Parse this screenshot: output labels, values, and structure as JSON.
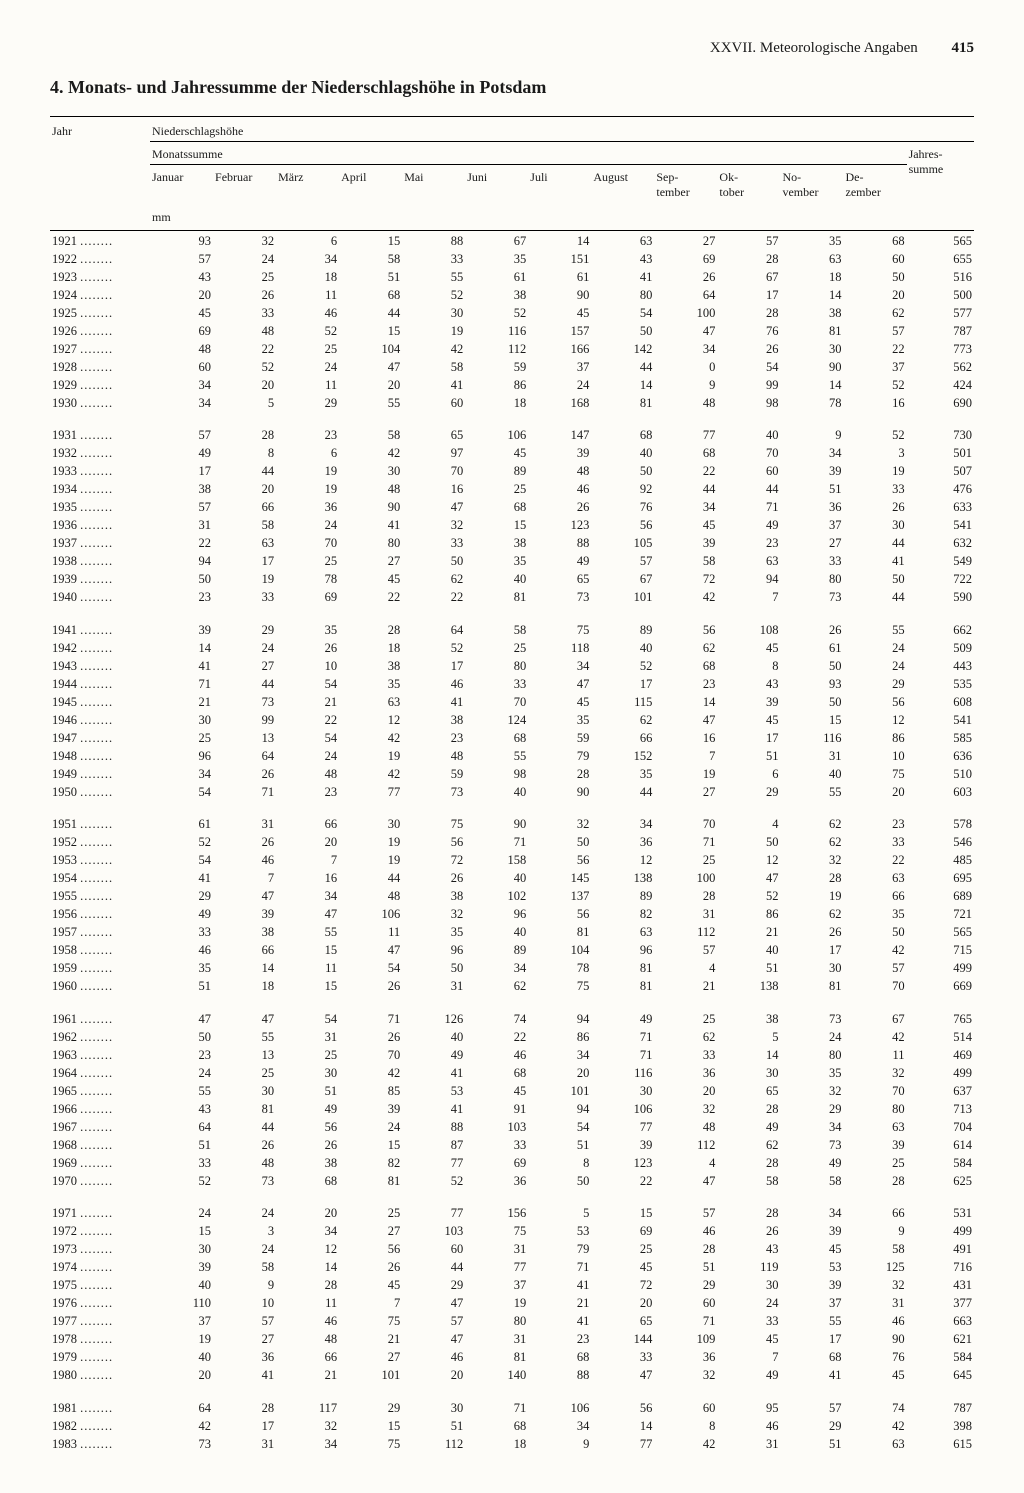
{
  "header": {
    "section": "XXVII. Meteorologische Angaben",
    "page": "415"
  },
  "title": "4. Monats- und Jahressumme der Niederschlagshöhe in Potsdam",
  "columns": {
    "year": "Jahr",
    "group": "Niederschlagshöhe",
    "monthGroup": "Monatssumme",
    "annual": "Jahres-\nsumme",
    "months": [
      "Januar",
      "Februar",
      "März",
      "April",
      "Mai",
      "Juni",
      "Juli",
      "August",
      "Sep-\ntember",
      "Ok-\ntober",
      "No-\nvember",
      "De-\nzember"
    ],
    "unit": "mm"
  },
  "rows": [
    {
      "y": "1921",
      "v": [
        93,
        32,
        6,
        15,
        88,
        67,
        14,
        63,
        27,
        57,
        35,
        68,
        565
      ]
    },
    {
      "y": "1922",
      "v": [
        57,
        24,
        34,
        58,
        33,
        35,
        151,
        43,
        69,
        28,
        63,
        60,
        655
      ]
    },
    {
      "y": "1923",
      "v": [
        43,
        25,
        18,
        51,
        55,
        61,
        61,
        41,
        26,
        67,
        18,
        50,
        516
      ]
    },
    {
      "y": "1924",
      "v": [
        20,
        26,
        11,
        68,
        52,
        38,
        90,
        80,
        64,
        17,
        14,
        20,
        500
      ]
    },
    {
      "y": "1925",
      "v": [
        45,
        33,
        46,
        44,
        30,
        52,
        45,
        54,
        100,
        28,
        38,
        62,
        577
      ]
    },
    {
      "y": "1926",
      "v": [
        69,
        48,
        52,
        15,
        19,
        116,
        157,
        50,
        47,
        76,
        81,
        57,
        787
      ]
    },
    {
      "y": "1927",
      "v": [
        48,
        22,
        25,
        104,
        42,
        112,
        166,
        142,
        34,
        26,
        30,
        22,
        773
      ]
    },
    {
      "y": "1928",
      "v": [
        60,
        52,
        24,
        47,
        58,
        59,
        37,
        44,
        0,
        54,
        90,
        37,
        562
      ]
    },
    {
      "y": "1929",
      "v": [
        34,
        20,
        11,
        20,
        41,
        86,
        24,
        14,
        9,
        99,
        14,
        52,
        424
      ]
    },
    {
      "y": "1930",
      "v": [
        34,
        5,
        29,
        55,
        60,
        18,
        168,
        81,
        48,
        98,
        78,
        16,
        690
      ]
    },
    {
      "y": "1931",
      "v": [
        57,
        28,
        23,
        58,
        65,
        106,
        147,
        68,
        77,
        40,
        9,
        52,
        730
      ],
      "gap": true
    },
    {
      "y": "1932",
      "v": [
        49,
        8,
        6,
        42,
        97,
        45,
        39,
        40,
        68,
        70,
        34,
        3,
        501
      ]
    },
    {
      "y": "1933",
      "v": [
        17,
        44,
        19,
        30,
        70,
        89,
        48,
        50,
        22,
        60,
        39,
        19,
        507
      ]
    },
    {
      "y": "1934",
      "v": [
        38,
        20,
        19,
        48,
        16,
        25,
        46,
        92,
        44,
        44,
        51,
        33,
        476
      ]
    },
    {
      "y": "1935",
      "v": [
        57,
        66,
        36,
        90,
        47,
        68,
        26,
        76,
        34,
        71,
        36,
        26,
        633
      ]
    },
    {
      "y": "1936",
      "v": [
        31,
        58,
        24,
        41,
        32,
        15,
        123,
        56,
        45,
        49,
        37,
        30,
        541
      ]
    },
    {
      "y": "1937",
      "v": [
        22,
        63,
        70,
        80,
        33,
        38,
        88,
        105,
        39,
        23,
        27,
        44,
        632
      ]
    },
    {
      "y": "1938",
      "v": [
        94,
        17,
        25,
        27,
        50,
        35,
        49,
        57,
        58,
        63,
        33,
        41,
        549
      ]
    },
    {
      "y": "1939",
      "v": [
        50,
        19,
        78,
        45,
        62,
        40,
        65,
        67,
        72,
        94,
        80,
        50,
        722
      ]
    },
    {
      "y": "1940",
      "v": [
        23,
        33,
        69,
        22,
        22,
        81,
        73,
        101,
        42,
        7,
        73,
        44,
        590
      ]
    },
    {
      "y": "1941",
      "v": [
        39,
        29,
        35,
        28,
        64,
        58,
        75,
        89,
        56,
        108,
        26,
        55,
        662
      ],
      "gap": true
    },
    {
      "y": "1942",
      "v": [
        14,
        24,
        26,
        18,
        52,
        25,
        118,
        40,
        62,
        45,
        61,
        24,
        509
      ]
    },
    {
      "y": "1943",
      "v": [
        41,
        27,
        10,
        38,
        17,
        80,
        34,
        52,
        68,
        8,
        50,
        24,
        443
      ]
    },
    {
      "y": "1944",
      "v": [
        71,
        44,
        54,
        35,
        46,
        33,
        47,
        17,
        23,
        43,
        93,
        29,
        535
      ]
    },
    {
      "y": "1945",
      "v": [
        21,
        73,
        21,
        63,
        41,
        70,
        45,
        115,
        14,
        39,
        50,
        56,
        608
      ]
    },
    {
      "y": "1946",
      "v": [
        30,
        99,
        22,
        12,
        38,
        124,
        35,
        62,
        47,
        45,
        15,
        12,
        541
      ]
    },
    {
      "y": "1947",
      "v": [
        25,
        13,
        54,
        42,
        23,
        68,
        59,
        66,
        16,
        17,
        116,
        86,
        585
      ]
    },
    {
      "y": "1948",
      "v": [
        96,
        64,
        24,
        19,
        48,
        55,
        79,
        152,
        7,
        51,
        31,
        10,
        636
      ]
    },
    {
      "y": "1949",
      "v": [
        34,
        26,
        48,
        42,
        59,
        98,
        28,
        35,
        19,
        6,
        40,
        75,
        510
      ]
    },
    {
      "y": "1950",
      "v": [
        54,
        71,
        23,
        77,
        73,
        40,
        90,
        44,
        27,
        29,
        55,
        20,
        603
      ]
    },
    {
      "y": "1951",
      "v": [
        61,
        31,
        66,
        30,
        75,
        90,
        32,
        34,
        70,
        4,
        62,
        23,
        578
      ],
      "gap": true
    },
    {
      "y": "1952",
      "v": [
        52,
        26,
        20,
        19,
        56,
        71,
        50,
        36,
        71,
        50,
        62,
        33,
        546
      ]
    },
    {
      "y": "1953",
      "v": [
        54,
        46,
        7,
        19,
        72,
        158,
        56,
        12,
        25,
        12,
        32,
        22,
        485
      ]
    },
    {
      "y": "1954",
      "v": [
        41,
        7,
        16,
        44,
        26,
        40,
        145,
        138,
        100,
        47,
        28,
        63,
        695
      ]
    },
    {
      "y": "1955",
      "v": [
        29,
        47,
        34,
        48,
        38,
        102,
        137,
        89,
        28,
        52,
        19,
        66,
        689
      ]
    },
    {
      "y": "1956",
      "v": [
        49,
        39,
        47,
        106,
        32,
        96,
        56,
        82,
        31,
        86,
        62,
        35,
        721
      ]
    },
    {
      "y": "1957",
      "v": [
        33,
        38,
        55,
        11,
        35,
        40,
        81,
        63,
        112,
        21,
        26,
        50,
        565
      ]
    },
    {
      "y": "1958",
      "v": [
        46,
        66,
        15,
        47,
        96,
        89,
        104,
        96,
        57,
        40,
        17,
        42,
        715
      ]
    },
    {
      "y": "1959",
      "v": [
        35,
        14,
        11,
        54,
        50,
        34,
        78,
        81,
        4,
        51,
        30,
        57,
        499
      ]
    },
    {
      "y": "1960",
      "v": [
        51,
        18,
        15,
        26,
        31,
        62,
        75,
        81,
        21,
        138,
        81,
        70,
        669
      ]
    },
    {
      "y": "1961",
      "v": [
        47,
        47,
        54,
        71,
        126,
        74,
        94,
        49,
        25,
        38,
        73,
        67,
        765
      ],
      "gap": true
    },
    {
      "y": "1962",
      "v": [
        50,
        55,
        31,
        26,
        40,
        22,
        86,
        71,
        62,
        5,
        24,
        42,
        514
      ]
    },
    {
      "y": "1963",
      "v": [
        23,
        13,
        25,
        70,
        49,
        46,
        34,
        71,
        33,
        14,
        80,
        11,
        469
      ]
    },
    {
      "y": "1964",
      "v": [
        24,
        25,
        30,
        42,
        41,
        68,
        20,
        116,
        36,
        30,
        35,
        32,
        499
      ]
    },
    {
      "y": "1965",
      "v": [
        55,
        30,
        51,
        85,
        53,
        45,
        101,
        30,
        20,
        65,
        32,
        70,
        637
      ]
    },
    {
      "y": "1966",
      "v": [
        43,
        81,
        49,
        39,
        41,
        91,
        94,
        106,
        32,
        28,
        29,
        80,
        713
      ]
    },
    {
      "y": "1967",
      "v": [
        64,
        44,
        56,
        24,
        88,
        103,
        54,
        77,
        48,
        49,
        34,
        63,
        704
      ]
    },
    {
      "y": "1968",
      "v": [
        51,
        26,
        26,
        15,
        87,
        33,
        51,
        39,
        112,
        62,
        73,
        39,
        614
      ]
    },
    {
      "y": "1969",
      "v": [
        33,
        48,
        38,
        82,
        77,
        69,
        8,
        123,
        4,
        28,
        49,
        25,
        584
      ]
    },
    {
      "y": "1970",
      "v": [
        52,
        73,
        68,
        81,
        52,
        36,
        50,
        22,
        47,
        58,
        58,
        28,
        625
      ]
    },
    {
      "y": "1971",
      "v": [
        24,
        24,
        20,
        25,
        77,
        156,
        5,
        15,
        57,
        28,
        34,
        66,
        531
      ],
      "gap": true
    },
    {
      "y": "1972",
      "v": [
        15,
        3,
        34,
        27,
        103,
        75,
        53,
        69,
        46,
        26,
        39,
        9,
        499
      ]
    },
    {
      "y": "1973",
      "v": [
        30,
        24,
        12,
        56,
        60,
        31,
        79,
        25,
        28,
        43,
        45,
        58,
        491
      ]
    },
    {
      "y": "1974",
      "v": [
        39,
        58,
        14,
        26,
        44,
        77,
        71,
        45,
        51,
        119,
        53,
        125,
        716
      ]
    },
    {
      "y": "1975",
      "v": [
        40,
        9,
        28,
        45,
        29,
        37,
        41,
        72,
        29,
        30,
        39,
        32,
        431
      ]
    },
    {
      "y": "1976",
      "v": [
        110,
        10,
        11,
        7,
        47,
        19,
        21,
        20,
        60,
        24,
        37,
        31,
        377
      ]
    },
    {
      "y": "1977",
      "v": [
        37,
        57,
        46,
        75,
        57,
        80,
        41,
        65,
        71,
        33,
        55,
        46,
        663
      ]
    },
    {
      "y": "1978",
      "v": [
        19,
        27,
        48,
        21,
        47,
        31,
        23,
        144,
        109,
        45,
        17,
        90,
        621
      ]
    },
    {
      "y": "1979",
      "v": [
        40,
        36,
        66,
        27,
        46,
        81,
        68,
        33,
        36,
        7,
        68,
        76,
        584
      ]
    },
    {
      "y": "1980",
      "v": [
        20,
        41,
        21,
        101,
        20,
        140,
        88,
        47,
        32,
        49,
        41,
        45,
        645
      ]
    },
    {
      "y": "1981",
      "v": [
        64,
        28,
        117,
        29,
        30,
        71,
        106,
        56,
        60,
        95,
        57,
        74,
        787
      ],
      "gap": true
    },
    {
      "y": "1982",
      "v": [
        42,
        17,
        32,
        15,
        51,
        68,
        34,
        14,
        8,
        46,
        29,
        42,
        398
      ]
    },
    {
      "y": "1983",
      "v": [
        73,
        31,
        34,
        75,
        112,
        18,
        9,
        77,
        42,
        31,
        51,
        63,
        615
      ]
    }
  ]
}
